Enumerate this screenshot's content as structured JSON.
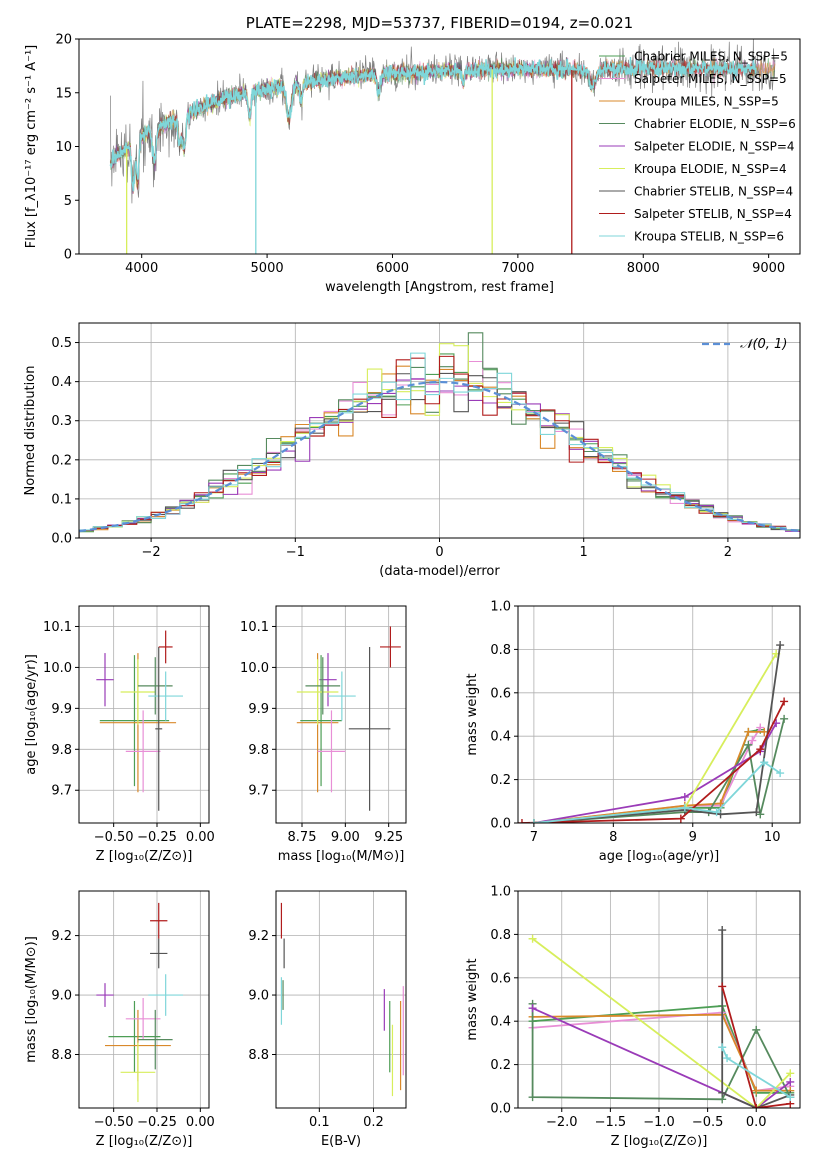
{
  "chart_data": [
    {
      "id": "spectrum",
      "type": "line",
      "title": "PLATE=2298, MJD=53737, FIBERID=0194, z=0.021",
      "xlabel": "wavelength [Angstrom, rest frame]",
      "ylabel": "Flux [f_λ10⁻¹⁷ erg cm⁻² s⁻¹ A⁻¹]",
      "xlim": [
        3500,
        9250
      ],
      "ylim": [
        0,
        20
      ],
      "xticks": [
        4000,
        5000,
        6000,
        7000,
        8000,
        9000
      ],
      "yticks": [
        0,
        5,
        10,
        15,
        20
      ],
      "grid": false,
      "legend_position": "top-right",
      "series": [
        {
          "name": "Chabrier MILES, N_SSP=5",
          "color": "#4d9e55"
        },
        {
          "name": "Salpeter MILES, N_SSP=5",
          "color": "#e88fd6"
        },
        {
          "name": "Kroupa MILES, N_SSP=5",
          "color": "#d9892b"
        },
        {
          "name": "Chabrier ELODIE, N_SSP=6",
          "color": "#568a5e"
        },
        {
          "name": "Salpeter ELODIE, N_SSP=4",
          "color": "#9a3bb8"
        },
        {
          "name": "Kroupa ELODIE, N_SSP=4",
          "color": "#d7ee5c"
        },
        {
          "name": "Chabrier STELIB, N_SSP=4",
          "color": "#555555"
        },
        {
          "name": "Salpeter STELIB, N_SSP=4",
          "color": "#b01c1c"
        },
        {
          "name": "Kroupa STELIB, N_SSP=6",
          "color": "#7fd6d9"
        }
      ],
      "observed_color": "#808080",
      "continuum": {
        "x": [
          3750,
          3900,
          4000,
          4200,
          4400,
          4600,
          4800,
          5000,
          5300,
          5600,
          6000,
          6500,
          7000,
          7500,
          8000,
          8500,
          9000
        ],
        "y": [
          8.5,
          10.0,
          11.0,
          12.2,
          13.2,
          14.2,
          15.0,
          15.4,
          15.9,
          16.4,
          16.8,
          17.1,
          17.2,
          17.1,
          17.3,
          17.3,
          17.2
        ]
      },
      "model_drops": [
        {
          "x": 4910,
          "y": 0.0,
          "series": "Kroupa STELIB, N_SSP=6"
        },
        {
          "x": 6795,
          "y": 0.0,
          "series": "Kroupa ELODIE, N_SSP=4"
        },
        {
          "x": 7430,
          "y": 0.0,
          "series": "Salpeter STELIB, N_SSP=4"
        },
        {
          "x": 3880,
          "y": 0.0,
          "series": "Kroupa ELODIE, N_SSP=4"
        }
      ]
    },
    {
      "id": "residuals",
      "type": "line",
      "xlabel": "(data-model)/error",
      "ylabel": "Normed distribution",
      "xlim": [
        -2.5,
        2.5
      ],
      "ylim": [
        0,
        0.55
      ],
      "xticks": [
        -2,
        -1,
        0,
        1,
        2
      ],
      "yticks": [
        0.0,
        0.1,
        0.2,
        0.3,
        0.4,
        0.5
      ],
      "grid": true,
      "legend_position": "top-right",
      "legend": [
        {
          "name": "𝒩(0, 1)",
          "color": "#5b8fd6",
          "style": "dashed"
        }
      ],
      "histogram_bin_width": 0.1,
      "reference_curve": "normal(0, 1)",
      "histogram_peak_values": [
        {
          "x": 0.25,
          "y": 0.525,
          "series": "Chabrier ELODIE, N_SSP=6"
        },
        {
          "x": 0.05,
          "y": 0.497,
          "series": "Kroupa ELODIE, N_SSP=4"
        },
        {
          "x": -0.15,
          "y": 0.46,
          "series": "Salpeter STELIB, N_SSP=4"
        }
      ]
    },
    {
      "id": "age-vs-Z",
      "type": "scatter",
      "xlabel": "Z [log₁₀(Z/Z⊙)]",
      "ylabel": "age  [log₁₀(age/yr)]",
      "xlim": [
        -0.7,
        0.05
      ],
      "ylim": [
        9.62,
        10.15
      ],
      "xticks": [
        -0.5,
        -0.25,
        0.0
      ],
      "xticklabels": [
        "−0.50",
        "−0.25",
        "0.00"
      ],
      "yticks": [
        9.7,
        9.8,
        9.9,
        10.0,
        10.1
      ],
      "grid": true,
      "points": [
        {
          "series": "Salpeter ELODIE, N_SSP=4",
          "x": -0.55,
          "xerr": 0.05,
          "y": 9.97,
          "yerr": 0.065
        },
        {
          "series": "Chabrier MILES, N_SSP=5",
          "x": -0.38,
          "xerr": 0.2,
          "y": 9.87,
          "yerr": 0.16
        },
        {
          "series": "Kroupa MILES, N_SSP=5",
          "x": -0.36,
          "xerr": 0.22,
          "y": 9.865,
          "yerr": 0.17
        },
        {
          "series": "Salpeter MILES, N_SSP=5",
          "x": -0.33,
          "xerr": 0.1,
          "y": 9.795,
          "yerr": 0.1
        },
        {
          "series": "Kroupa ELODIE, N_SSP=4",
          "x": -0.36,
          "xerr": 0.1,
          "y": 9.94,
          "yerr": 0.08
        },
        {
          "series": "Chabrier ELODIE, N_SSP=6",
          "x": -0.26,
          "xerr": 0.1,
          "y": 9.955,
          "yerr": 0.07
        },
        {
          "series": "Kroupa STELIB, N_SSP=6",
          "x": -0.2,
          "xerr": 0.1,
          "y": 9.93,
          "yerr": 0.06
        },
        {
          "series": "Chabrier STELIB, N_SSP=4",
          "x": -0.24,
          "xerr": 0.02,
          "y": 9.85,
          "yerr": 0.2
        },
        {
          "series": "Salpeter STELIB, N_SSP=4",
          "x": -0.2,
          "xerr": 0.04,
          "y": 10.05,
          "yerr": 0.04
        }
      ]
    },
    {
      "id": "age-vs-mass",
      "type": "scatter",
      "xlabel": "mass [log₁₀(M/M⊙)]",
      "xlim": [
        8.6,
        9.35
      ],
      "ylim": [
        9.62,
        10.15
      ],
      "xticks": [
        8.75,
        9.0,
        9.25
      ],
      "yticks": [
        9.7,
        9.8,
        9.9,
        10.0,
        10.1
      ],
      "grid": true,
      "points": [
        {
          "series": "Salpeter ELODIE, N_SSP=4",
          "x": 8.9,
          "xerr": 0.05,
          "y": 9.97,
          "yerr": 0.065
        },
        {
          "series": "Chabrier MILES, N_SSP=5",
          "x": 8.86,
          "xerr": 0.12,
          "y": 9.87,
          "yerr": 0.16
        },
        {
          "series": "Kroupa MILES, N_SSP=5",
          "x": 8.84,
          "xerr": 0.12,
          "y": 9.865,
          "yerr": 0.17
        },
        {
          "series": "Salpeter MILES, N_SSP=5",
          "x": 8.92,
          "xerr": 0.08,
          "y": 9.795,
          "yerr": 0.1
        },
        {
          "series": "Kroupa ELODIE, N_SSP=4",
          "x": 8.84,
          "xerr": 0.12,
          "y": 9.94,
          "yerr": 0.08
        },
        {
          "series": "Chabrier ELODIE, N_SSP=6",
          "x": 8.87,
          "xerr": 0.1,
          "y": 9.955,
          "yerr": 0.07
        },
        {
          "series": "Kroupa STELIB, N_SSP=6",
          "x": 8.98,
          "xerr": 0.08,
          "y": 9.93,
          "yerr": 0.06
        },
        {
          "series": "Chabrier STELIB, N_SSP=4",
          "x": 9.14,
          "xerr": 0.12,
          "y": 9.85,
          "yerr": 0.2
        },
        {
          "series": "Salpeter STELIB, N_SSP=4",
          "x": 9.26,
          "xerr": 0.06,
          "y": 10.05,
          "yerr": 0.05
        }
      ]
    },
    {
      "id": "weight-vs-age",
      "type": "line",
      "xlabel": "age  [log₁₀(age/yr)]",
      "ylabel": "mass weight",
      "xlim": [
        6.8,
        10.35
      ],
      "ylim": [
        0,
        1
      ],
      "xticks": [
        7,
        8,
        9,
        10
      ],
      "yticks": [
        0.0,
        0.2,
        0.4,
        0.6,
        0.8,
        1.0
      ],
      "grid": true,
      "series": [
        {
          "name": "Chabrier MILES, N_SSP=5",
          "x": [
            7.0,
            8.9,
            9.35,
            9.7,
            9.85
          ],
          "y": [
            0.0,
            0.07,
            0.07,
            0.42,
            0.43
          ]
        },
        {
          "name": "Salpeter MILES, N_SSP=5",
          "x": [
            7.0,
            8.9,
            9.35,
            9.75,
            9.85
          ],
          "y": [
            0.0,
            0.08,
            0.08,
            0.38,
            0.44
          ]
        },
        {
          "name": "Kroupa MILES, N_SSP=5",
          "x": [
            7.0,
            8.9,
            9.35,
            9.7,
            9.9
          ],
          "y": [
            0.0,
            0.08,
            0.09,
            0.42,
            0.42
          ]
        },
        {
          "name": "Chabrier ELODIE, N_SSP=6",
          "x": [
            7.0,
            8.9,
            9.2,
            9.7,
            9.85,
            10.15
          ],
          "y": [
            0.0,
            0.05,
            0.05,
            0.36,
            0.04,
            0.48
          ]
        },
        {
          "name": "Salpeter ELODIE, N_SSP=4",
          "x": [
            7.0,
            8.9,
            9.85,
            10.05
          ],
          "y": [
            0.0,
            0.12,
            0.33,
            0.46
          ]
        },
        {
          "name": "Kroupa ELODIE, N_SSP=4",
          "x": [
            7.0,
            8.9,
            10.05
          ],
          "y": [
            0.0,
            0.07,
            0.78
          ]
        },
        {
          "name": "Chabrier STELIB, N_SSP=4",
          "x": [
            7.0,
            8.9,
            9.35,
            9.8,
            10.1
          ],
          "y": [
            0.0,
            0.06,
            0.04,
            0.05,
            0.82
          ]
        },
        {
          "name": "Salpeter STELIB, N_SSP=4",
          "x": [
            6.85,
            8.85,
            9.85,
            10.15
          ],
          "y": [
            0.0,
            0.02,
            0.34,
            0.56
          ]
        },
        {
          "name": "Kroupa STELIB, N_SSP=6",
          "x": [
            7.0,
            8.9,
            9.3,
            9.9,
            10.1
          ],
          "y": [
            0.0,
            0.07,
            0.05,
            0.28,
            0.23
          ]
        }
      ]
    },
    {
      "id": "mass-vs-Z",
      "type": "scatter",
      "xlabel": "Z [log₁₀(Z/Z⊙)]",
      "ylabel": "mass [log₁₀(M/M⊙)]",
      "xlim": [
        -0.7,
        0.05
      ],
      "ylim": [
        8.62,
        9.35
      ],
      "xticks": [
        -0.5,
        -0.25,
        0.0
      ],
      "xticklabels": [
        "−0.50",
        "−0.25",
        "0.00"
      ],
      "yticks": [
        8.8,
        9.0,
        9.2
      ],
      "grid": true,
      "points": [
        {
          "series": "Salpeter ELODIE, N_SSP=4",
          "x": -0.55,
          "xerr": 0.05,
          "y": 9.0,
          "yerr": 0.04
        },
        {
          "series": "Chabrier MILES, N_SSP=5",
          "x": -0.38,
          "xerr": 0.15,
          "y": 8.86,
          "yerr": 0.12
        },
        {
          "series": "Kroupa MILES, N_SSP=5",
          "x": -0.36,
          "xerr": 0.19,
          "y": 8.83,
          "yerr": 0.12
        },
        {
          "series": "Salpeter MILES, N_SSP=5",
          "x": -0.33,
          "xerr": 0.1,
          "y": 8.92,
          "yerr": 0.07
        },
        {
          "series": "Kroupa ELODIE, N_SSP=4",
          "x": -0.36,
          "xerr": 0.1,
          "y": 8.74,
          "yerr": 0.1
        },
        {
          "series": "Chabrier ELODIE, N_SSP=6",
          "x": -0.26,
          "xerr": 0.1,
          "y": 8.85,
          "yerr": 0.1
        },
        {
          "series": "Kroupa STELIB, N_SSP=6",
          "x": -0.2,
          "xerr": 0.1,
          "y": 9.0,
          "yerr": 0.07
        },
        {
          "series": "Chabrier STELIB, N_SSP=4",
          "x": -0.24,
          "xerr": 0.05,
          "y": 9.14,
          "yerr": 0.05
        },
        {
          "series": "Salpeter STELIB, N_SSP=4",
          "x": -0.24,
          "xerr": 0.05,
          "y": 9.25,
          "yerr": 0.06
        }
      ]
    },
    {
      "id": "mass-vs-ebv",
      "type": "scatter",
      "xlabel": "E(B-V)",
      "xlim": [
        0.02,
        0.26
      ],
      "ylim": [
        8.62,
        9.35
      ],
      "xticks": [
        0.1,
        0.2
      ],
      "yticks": [
        8.8,
        9.0,
        9.2
      ],
      "grid": true,
      "points": [
        {
          "series": "Salpeter STELIB, N_SSP=4",
          "x": 0.03,
          "y": 9.25,
          "yerr": 0.06
        },
        {
          "series": "Chabrier STELIB, N_SSP=4",
          "x": 0.035,
          "y": 9.14,
          "yerr": 0.05
        },
        {
          "series": "Chabrier ELODIE, N_SSP=6",
          "x": 0.033,
          "y": 9.0,
          "yerr": 0.05
        },
        {
          "series": "Kroupa STELIB, N_SSP=6",
          "x": 0.03,
          "y": 8.98,
          "yerr": 0.08
        },
        {
          "series": "Salpeter ELODIE, N_SSP=4",
          "x": 0.22,
          "y": 8.95,
          "yerr": 0.07
        },
        {
          "series": "Chabrier MILES, N_SSP=5",
          "x": 0.23,
          "y": 8.86,
          "yerr": 0.12
        },
        {
          "series": "Kroupa ELODIE, N_SSP=4",
          "x": 0.235,
          "y": 8.78,
          "yerr": 0.12
        },
        {
          "series": "Kroupa MILES, N_SSP=5",
          "x": 0.25,
          "y": 8.83,
          "yerr": 0.15
        },
        {
          "series": "Salpeter MILES, N_SSP=5",
          "x": 0.255,
          "y": 8.88,
          "yerr": 0.15
        }
      ]
    },
    {
      "id": "weight-vs-Z",
      "type": "line",
      "xlabel": "Z [log₁₀(Z/Z⊙)]",
      "ylabel": "mass weight",
      "xlim": [
        -2.45,
        0.45
      ],
      "ylim": [
        0,
        1
      ],
      "xticks": [
        -2.0,
        -1.5,
        -1.0,
        -0.5,
        0.0
      ],
      "xticklabels": [
        "−2.0",
        "−1.5",
        "−1.0",
        "−0.5",
        "0.0"
      ],
      "yticks": [
        0.0,
        0.2,
        0.4,
        0.6,
        0.8,
        1.0
      ],
      "grid": true,
      "series": [
        {
          "name": "Chabrier MILES, N_SSP=5",
          "x": [
            -2.3,
            -0.35,
            0.0,
            0.35
          ],
          "y": [
            0.4,
            0.47,
            0.07,
            0.07
          ]
        },
        {
          "name": "Salpeter MILES, N_SSP=5",
          "x": [
            -2.3,
            -0.35,
            0.0,
            0.35
          ],
          "y": [
            0.37,
            0.44,
            0.08,
            0.1
          ]
        },
        {
          "name": "Kroupa MILES, N_SSP=5",
          "x": [
            -2.3,
            -0.35,
            0.0,
            0.35
          ],
          "y": [
            0.42,
            0.43,
            0.08,
            0.08
          ]
        },
        {
          "name": "Chabrier ELODIE, N_SSP=6",
          "x": [
            -2.3,
            -2.3,
            -0.35,
            0.0,
            0.35
          ],
          "y": [
            0.48,
            0.05,
            0.04,
            0.36,
            0.05
          ]
        },
        {
          "name": "Salpeter ELODIE, N_SSP=4",
          "x": [
            -2.3,
            0.0,
            0.35
          ],
          "y": [
            0.46,
            0.0,
            0.12
          ]
        },
        {
          "name": "Kroupa ELODIE, N_SSP=4",
          "x": [
            -2.3,
            0.0,
            0.35
          ],
          "y": [
            0.78,
            0.0,
            0.16
          ]
        },
        {
          "name": "Chabrier STELIB, N_SSP=4",
          "x": [
            -0.35,
            -0.35,
            0.0,
            0.35
          ],
          "y": [
            0.82,
            0.07,
            0.0,
            0.06
          ]
        },
        {
          "name": "Salpeter STELIB, N_SSP=4",
          "x": [
            -0.35,
            0.0,
            0.35
          ],
          "y": [
            0.56,
            0.0,
            0.02
          ]
        },
        {
          "name": "Kroupa STELIB, N_SSP=6",
          "x": [
            -0.35,
            -0.3,
            0.35
          ],
          "y": [
            0.28,
            0.23,
            0.05
          ]
        }
      ]
    }
  ]
}
